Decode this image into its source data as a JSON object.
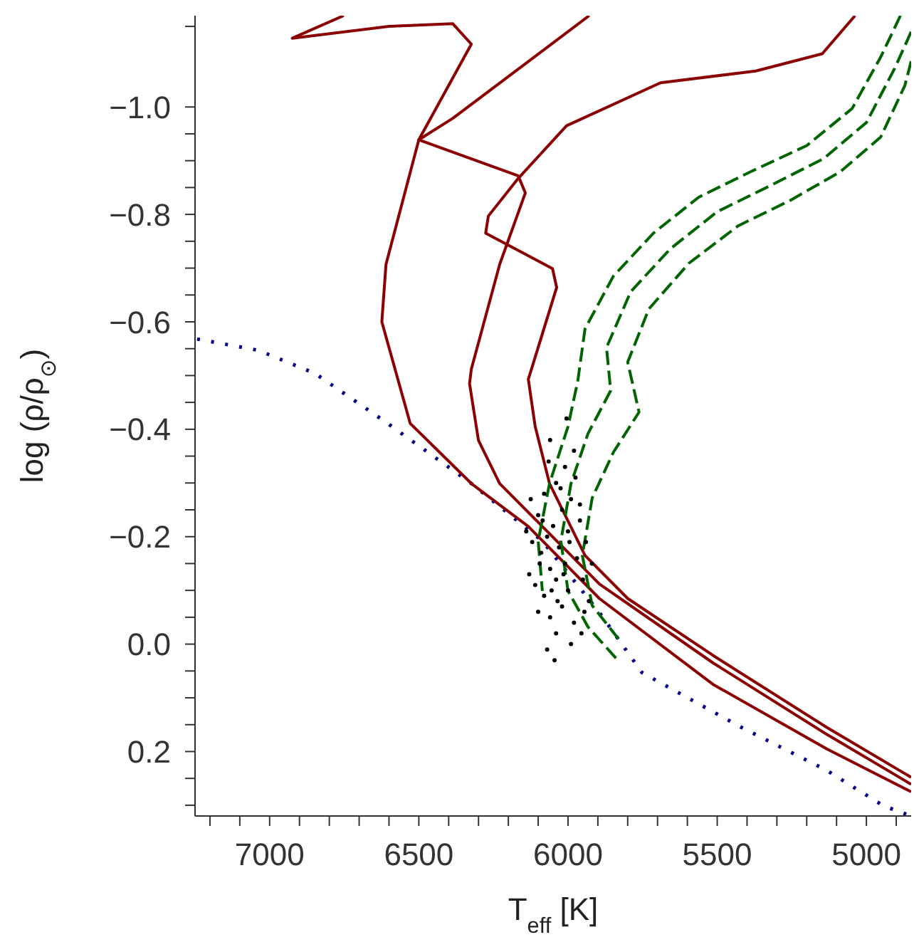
{
  "chart_data": {
    "type": "line",
    "xlabel": "T$_{eff}$ [K]",
    "ylabel": "log (ρ/ρ$_{⊙}$)",
    "xlim": [
      7250,
      4850
    ],
    "ylim": [
      0.32,
      -1.17
    ],
    "xticks": [
      {
        "value": 7200,
        "label": null
      },
      {
        "value": 7100,
        "label": null
      },
      7000,
      {
        "value": 6900,
        "label": null
      },
      {
        "value": 6800,
        "label": null
      },
      {
        "value": 6700,
        "label": null
      },
      {
        "value": 6600,
        "label": null
      },
      6500,
      {
        "value": 6400,
        "label": null
      },
      {
        "value": 6300,
        "label": null
      },
      {
        "value": 6200,
        "label": null
      },
      {
        "value": 6100,
        "label": null
      },
      6000,
      {
        "value": 5900,
        "label": null
      },
      {
        "value": 5800,
        "label": null
      },
      {
        "value": 5700,
        "label": null
      },
      {
        "value": 5600,
        "label": null
      },
      5500,
      {
        "value": 5400,
        "label": null
      },
      {
        "value": 5300,
        "label": null
      },
      {
        "value": 5200,
        "label": null
      },
      {
        "value": 5100,
        "label": null
      },
      5000,
      {
        "value": 4900,
        "label": null
      }
    ],
    "yticks": [
      {
        "value": -1.15,
        "label": null
      },
      {
        "value": -1.0,
        "label": "−1.0"
      },
      {
        "value": -0.95,
        "label": null
      },
      {
        "value": -0.9,
        "label": null
      },
      {
        "value": -0.85,
        "label": null
      },
      {
        "value": -0.8,
        "label": "−0.8"
      },
      {
        "value": -0.75,
        "label": null
      },
      {
        "value": -0.7,
        "label": null
      },
      {
        "value": -0.65,
        "label": null
      },
      {
        "value": -0.6,
        "label": "−0.6"
      },
      {
        "value": -0.55,
        "label": null
      },
      {
        "value": -0.5,
        "label": null
      },
      {
        "value": -0.45,
        "label": null
      },
      {
        "value": -0.4,
        "label": "−0.4"
      },
      {
        "value": -0.35,
        "label": null
      },
      {
        "value": -0.3,
        "label": null
      },
      {
        "value": -0.25,
        "label": null
      },
      {
        "value": -0.2,
        "label": "−0.2"
      },
      {
        "value": -0.15,
        "label": null
      },
      {
        "value": -0.1,
        "label": null
      },
      {
        "value": -0.05,
        "label": null
      },
      {
        "value": 0,
        "label": "0.0"
      },
      {
        "value": 0.05,
        "label": null
      },
      {
        "value": 0.1,
        "label": null
      },
      {
        "value": 0.15,
        "label": null
      },
      {
        "value": 0.2,
        "label": "0.2"
      },
      {
        "value": 0.25,
        "label": null
      },
      {
        "value": 0.3,
        "label": null
      }
    ],
    "grid": false,
    "marker": "none",
    "series": [
      {
        "line_style": "dotted",
        "color": "#00008b",
        "x": [
          7243,
          7038,
          6848,
          6610,
          6324,
          6086,
          5895,
          5752,
          5419,
          5133,
          4943,
          4850
        ],
        "values": [
          -0.568,
          -0.547,
          -0.504,
          -0.413,
          -0.299,
          -0.192,
          -0.059,
          0.053,
          0.155,
          0.235,
          0.301,
          0.32
        ]
      },
      {
        "line_style": "solid",
        "color": "#8b0000",
        "x": [
          6752,
          6924,
          6600,
          6386,
          6324,
          6500,
          6610,
          6624,
          6529,
          6324,
          6133,
          5895,
          5514,
          5133,
          4850
        ],
        "values": [
          -1.17,
          -1.128,
          -1.15,
          -1.155,
          -1.117,
          -0.939,
          -0.707,
          -0.6,
          -0.411,
          -0.299,
          -0.219,
          -0.085,
          0.075,
          0.195,
          0.275
        ]
      },
      {
        "line_style": "solid",
        "color": "#8b0000",
        "x": [
          5929,
          6386,
          6500,
          6167,
          6143,
          6229,
          6324,
          6330,
          6300,
          6229,
          6086,
          5895,
          5514,
          5133,
          4850
        ],
        "values": [
          -1.17,
          -0.979,
          -0.939,
          -0.872,
          -0.84,
          -0.707,
          -0.512,
          -0.485,
          -0.379,
          -0.299,
          -0.219,
          -0.112,
          0.035,
          0.168,
          0.261
        ]
      },
      {
        "line_style": "solid",
        "color": "#8b0000",
        "x": [
          5038,
          5148,
          5371,
          5690,
          6005,
          6167,
          6267,
          6276,
          6052,
          6038,
          6133,
          6110,
          6062,
          5943,
          5800,
          5514,
          5133,
          4850
        ],
        "values": [
          -1.17,
          -1.099,
          -1.067,
          -1.045,
          -0.965,
          -0.867,
          -0.797,
          -0.765,
          -0.699,
          -0.664,
          -0.493,
          -0.405,
          -0.299,
          -0.165,
          -0.085,
          0.021,
          0.155,
          0.248
        ]
      },
      {
        "line_style": "dashed",
        "color": "#006400",
        "x": [
          4886,
          4952,
          5048,
          5200,
          5386,
          5562,
          5714,
          5848,
          5943,
          5967,
          6000,
          6062,
          6100,
          6086
        ],
        "values": [
          -1.17,
          -1.093,
          -0.997,
          -0.928,
          -0.88,
          -0.832,
          -0.765,
          -0.685,
          -0.587,
          -0.491,
          -0.405,
          -0.299,
          -0.192,
          -0.099
        ]
      },
      {
        "line_style": "dashed",
        "color": "#006400",
        "x": [
          4850,
          4905,
          5000,
          5143,
          5324,
          5500,
          5657,
          5790,
          5871,
          5857,
          5933,
          5990,
          6024,
          6000,
          5933,
          5838
        ],
        "values": [
          -1.14,
          -1.072,
          -0.971,
          -0.904,
          -0.853,
          -0.805,
          -0.736,
          -0.656,
          -0.552,
          -0.472,
          -0.392,
          -0.299,
          -0.192,
          -0.099,
          -0.032,
          0.027
        ]
      },
      {
        "line_style": "dashed",
        "color": "#006400",
        "x": [
          4850,
          4871,
          4952,
          5086,
          5252,
          5429,
          5595,
          5729,
          5800,
          5762,
          5848,
          5919,
          5952,
          5919,
          5824
        ],
        "values": [
          -1.085,
          -1.04,
          -0.944,
          -0.88,
          -0.827,
          -0.779,
          -0.709,
          -0.624,
          -0.525,
          -0.432,
          -0.357,
          -0.272,
          -0.165,
          -0.072,
          -0.005
        ]
      },
      {
        "type": "scatter",
        "marker": "circle",
        "color": "#000000",
        "x": [
          6060,
          6010,
          5980,
          6040,
          6080,
          5990,
          6020,
          6100,
          5960,
          6050,
          6070,
          6000,
          6120,
          5940,
          6030,
          6090,
          5970,
          6010,
          6060,
          6130,
          5950,
          6040,
          6000,
          6080,
          5930,
          6020,
          6060,
          5980,
          6100,
          6040,
          5990,
          6070,
          6110,
          5960,
          6140,
          5920,
          6025,
          6055,
          5995,
          6085,
          6015,
          5945,
          6095,
          6035,
          5975,
          6065,
          6005,
          5955,
          6125,
          6045
        ],
        "values": [
          -0.38,
          -0.33,
          -0.36,
          -0.3,
          -0.28,
          -0.27,
          -0.25,
          -0.24,
          -0.23,
          -0.22,
          -0.2,
          -0.21,
          -0.19,
          -0.19,
          -0.18,
          -0.17,
          -0.16,
          -0.15,
          -0.14,
          -0.13,
          -0.12,
          -0.12,
          -0.1,
          -0.09,
          -0.08,
          -0.07,
          -0.05,
          -0.04,
          -0.06,
          -0.02,
          0,
          0.01,
          -0.11,
          -0.26,
          -0.21,
          -0.15,
          -0.29,
          -0.1,
          -0.19,
          -0.23,
          -0.13,
          -0.06,
          -0.15,
          -0.08,
          -0.31,
          -0.34,
          -0.42,
          -0.02,
          -0.27,
          0.03
        ]
      }
    ]
  }
}
